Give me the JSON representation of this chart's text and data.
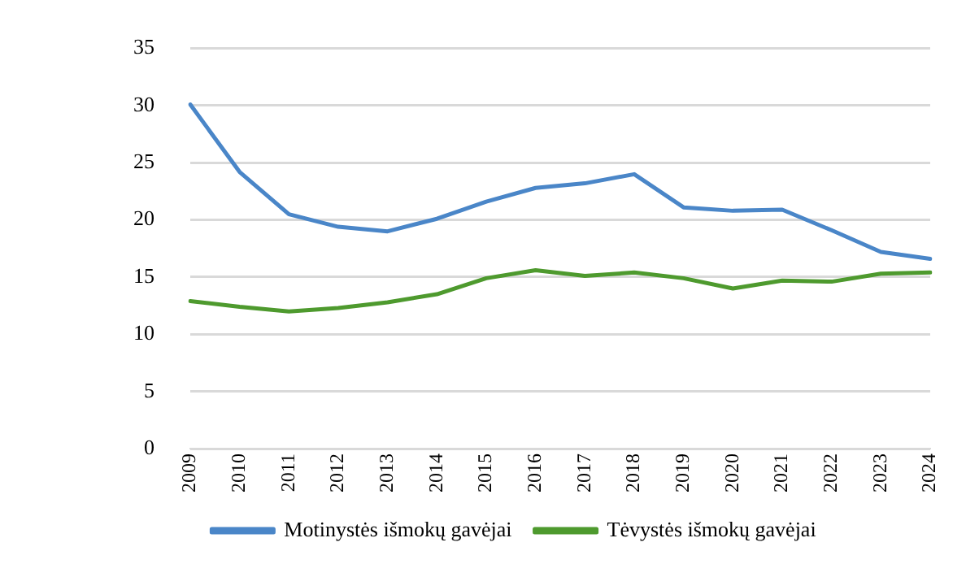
{
  "chart_data": {
    "type": "line",
    "categories": [
      "2009",
      "2010",
      "2011",
      "2012",
      "2013",
      "2014",
      "2015",
      "2016",
      "2017",
      "2018",
      "2019",
      "2020",
      "2021",
      "2022",
      "2023",
      "2024"
    ],
    "series": [
      {
        "name": "Motinystės išmokų gavėjai",
        "color": "#4a86c8",
        "values": [
          30.1,
          24.2,
          20.5,
          19.4,
          19.0,
          20.1,
          21.6,
          22.8,
          23.2,
          24.0,
          21.1,
          20.8,
          20.9,
          19.1,
          17.2,
          16.6
        ]
      },
      {
        "name": "Tėvystės išmokų gavėjai",
        "color": "#4e9a2e",
        "values": [
          12.9,
          12.4,
          12.0,
          12.3,
          12.8,
          13.5,
          14.9,
          15.6,
          15.1,
          15.4,
          14.9,
          14.0,
          14.7,
          14.6,
          15.3,
          15.4
        ]
      }
    ],
    "ylim": [
      0,
      35
    ],
    "yticks": [
      0,
      5,
      10,
      15,
      20,
      25,
      30,
      35
    ],
    "grid": "y",
    "legend": "bottom",
    "marker": "none",
    "line_style": "solid"
  }
}
